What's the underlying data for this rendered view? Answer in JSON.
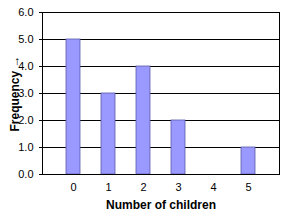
{
  "chart_data": {
    "type": "bar",
    "xlabel": "Number of children",
    "ylabel": "Frequency",
    "categories": [
      "0",
      "1",
      "2",
      "3",
      "4",
      "5"
    ],
    "values": [
      5,
      3,
      4,
      2,
      0,
      1
    ],
    "color": "#9999ff",
    "ylim": [
      0,
      6
    ],
    "yticks": [
      0,
      1,
      2,
      3,
      4,
      5,
      6
    ],
    "grid": true
  }
}
